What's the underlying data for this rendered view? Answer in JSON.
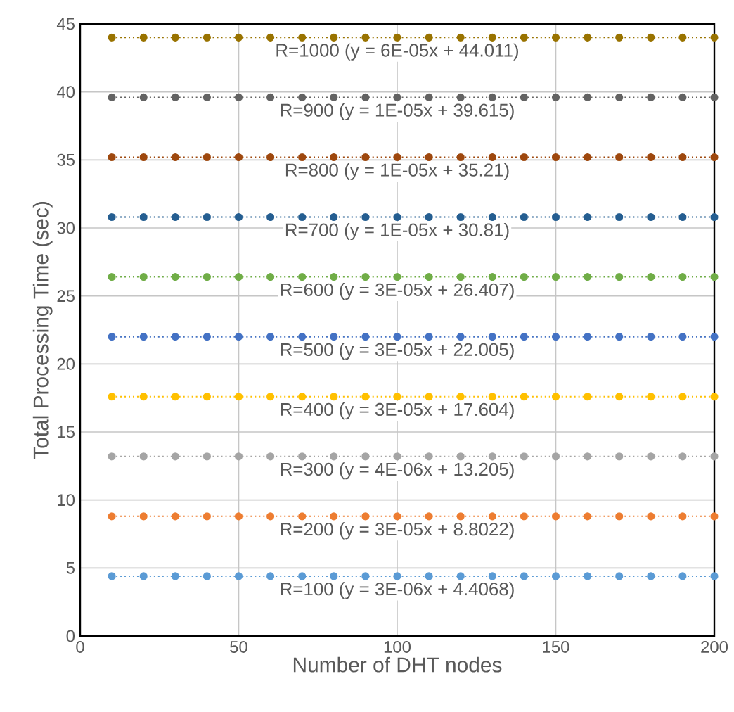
{
  "chart_data": {
    "type": "line",
    "xlabel": "Number of DHT nodes",
    "ylabel": "Total Processing Time (sec)",
    "x": [
      10,
      20,
      30,
      40,
      50,
      60,
      70,
      80,
      90,
      100,
      110,
      120,
      130,
      140,
      150,
      160,
      170,
      180,
      190,
      200
    ],
    "xlim": [
      0,
      200
    ],
    "xticks": [
      0,
      50,
      100,
      150,
      200
    ],
    "ylim": [
      0,
      45
    ],
    "yticks": [
      0,
      5,
      10,
      15,
      20,
      25,
      30,
      35,
      40,
      45
    ],
    "grid": true,
    "marker": "circle",
    "line_style": "dotted",
    "series": [
      {
        "color": "#5b9bd5",
        "values": [
          4.4,
          4.4,
          4.4,
          4.4,
          4.4,
          4.4,
          4.4,
          4.4,
          4.4,
          4.4,
          4.4,
          4.4,
          4.4,
          4.4,
          4.4,
          4.4,
          4.4,
          4.4,
          4.4,
          4.4
        ]
      },
      {
        "color": "#ed7d31",
        "values": [
          8.8,
          8.8,
          8.8,
          8.8,
          8.8,
          8.8,
          8.8,
          8.8,
          8.8,
          8.8,
          8.8,
          8.8,
          8.8,
          8.8,
          8.8,
          8.8,
          8.8,
          8.8,
          8.8,
          8.8
        ]
      },
      {
        "color": "#a5a5a5",
        "values": [
          13.2,
          13.2,
          13.2,
          13.2,
          13.2,
          13.2,
          13.2,
          13.2,
          13.2,
          13.2,
          13.2,
          13.2,
          13.2,
          13.2,
          13.2,
          13.2,
          13.2,
          13.2,
          13.2,
          13.2
        ]
      },
      {
        "color": "#ffc000",
        "values": [
          17.6,
          17.6,
          17.6,
          17.6,
          17.6,
          17.6,
          17.6,
          17.6,
          17.6,
          17.6,
          17.6,
          17.6,
          17.6,
          17.6,
          17.6,
          17.6,
          17.6,
          17.6,
          17.6,
          17.6
        ]
      },
      {
        "color": "#4472c4",
        "values": [
          22.0,
          22.0,
          22.0,
          22.0,
          22.0,
          22.0,
          22.0,
          22.0,
          22.0,
          22.0,
          22.0,
          22.0,
          22.0,
          22.0,
          22.0,
          22.0,
          22.0,
          22.0,
          22.0,
          22.0
        ]
      },
      {
        "color": "#70ad47",
        "values": [
          26.4,
          26.4,
          26.4,
          26.4,
          26.4,
          26.4,
          26.4,
          26.4,
          26.4,
          26.4,
          26.4,
          26.4,
          26.4,
          26.4,
          26.4,
          26.4,
          26.4,
          26.4,
          26.4,
          26.4
        ]
      },
      {
        "color": "#255e91",
        "values": [
          30.8,
          30.8,
          30.8,
          30.8,
          30.8,
          30.8,
          30.8,
          30.8,
          30.8,
          30.8,
          30.8,
          30.8,
          30.8,
          30.8,
          30.8,
          30.8,
          30.8,
          30.8,
          30.8,
          30.8
        ]
      },
      {
        "color": "#9e480e",
        "values": [
          35.2,
          35.2,
          35.2,
          35.2,
          35.2,
          35.2,
          35.2,
          35.2,
          35.2,
          35.2,
          35.2,
          35.2,
          35.2,
          35.2,
          35.2,
          35.2,
          35.2,
          35.2,
          35.2,
          35.2
        ]
      },
      {
        "color": "#636363",
        "values": [
          39.6,
          39.6,
          39.6,
          39.6,
          39.6,
          39.6,
          39.6,
          39.6,
          39.6,
          39.6,
          39.6,
          39.6,
          39.6,
          39.6,
          39.6,
          39.6,
          39.6,
          39.6,
          39.6,
          39.6
        ]
      },
      {
        "color": "#997300",
        "values": [
          44.0,
          44.0,
          44.0,
          44.0,
          44.0,
          44.0,
          44.0,
          44.0,
          44.0,
          44.0,
          44.0,
          44.0,
          44.0,
          44.0,
          44.0,
          44.0,
          44.0,
          44.0,
          44.0,
          44.0
        ]
      }
    ],
    "annotations": [
      "R=100 (y = 3E-06x + 4.4068)",
      "R=200 (y = 3E-05x + 8.8022)",
      "R=300 (y = 4E-06x + 13.205)",
      "R=400 (y = 3E-05x + 17.604)",
      "R=500 (y = 3E-05x + 22.005)",
      "R=600 (y = 3E-05x + 26.407)",
      "R=700 (y = 1E-05x + 30.81)",
      "R=800 (y = 1E-05x + 35.21)",
      "R=900 (y = 1E-05x + 39.615)",
      "R=1000 (y = 6E-05x + 44.011)"
    ]
  }
}
